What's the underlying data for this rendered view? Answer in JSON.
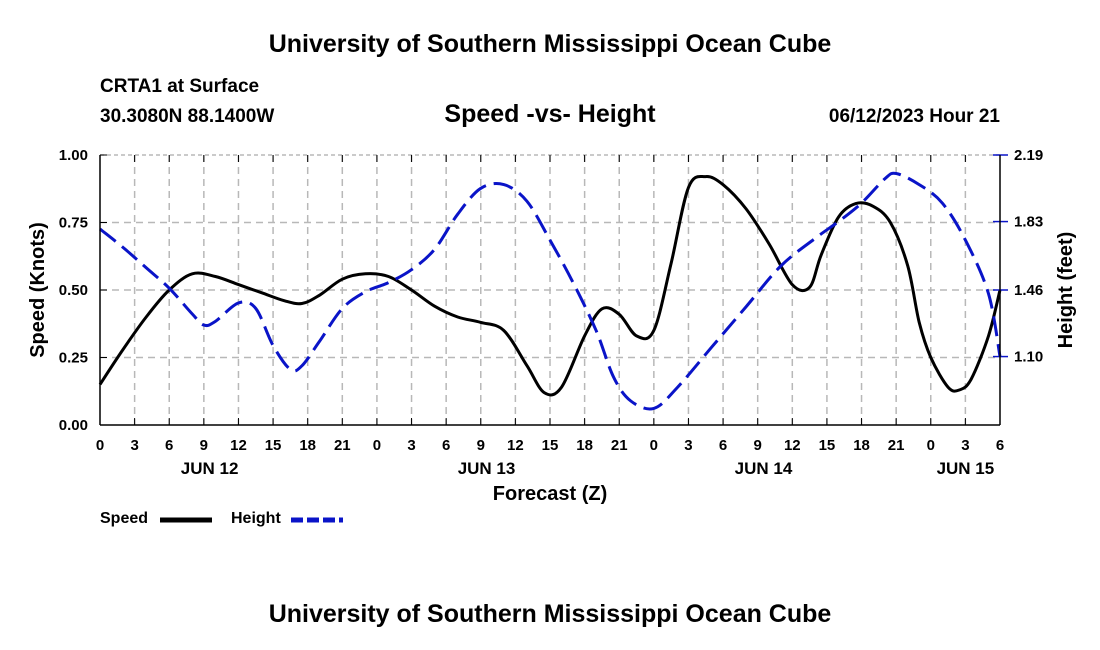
{
  "header": {
    "title": "University of Southern Mississippi Ocean Cube",
    "station": "CRTA1 at Surface",
    "coordinates": "30.3080N  88.1400W",
    "subtitle": "Speed -vs- Height",
    "datetime": "06/12/2023 Hour 21"
  },
  "footer": {
    "title": "University of Southern Mississippi Ocean Cube"
  },
  "colors": {
    "speed": "#000000",
    "height": "#0a14c8",
    "grid": "#b8b8b8"
  },
  "chart_data": {
    "type": "line",
    "title": "Speed -vs- Height",
    "xlabel": "Forecast (Z)",
    "ylabel": "Speed (Knots)",
    "y2label": "Height (feet)",
    "xlim": [
      0,
      78
    ],
    "ylim": [
      0,
      1.0
    ],
    "y2lim": [
      0.73,
      2.19
    ],
    "grid": true,
    "legend_position": "bottom-left",
    "x_ticks": [
      0,
      3,
      6,
      9,
      12,
      15,
      18,
      21,
      24,
      27,
      30,
      33,
      36,
      39,
      42,
      45,
      48,
      51,
      54,
      57,
      60,
      63,
      66,
      69,
      72,
      75,
      78
    ],
    "x_tick_labels": [
      "0",
      "3",
      "6",
      "9",
      "12",
      "15",
      "18",
      "21",
      "0",
      "3",
      "6",
      "9",
      "12",
      "15",
      "18",
      "21",
      "0",
      "3",
      "6",
      "9",
      "12",
      "15",
      "18",
      "21",
      "0",
      "3",
      "6"
    ],
    "day_labels": [
      {
        "x": 9.5,
        "label": "JUN 12"
      },
      {
        "x": 33.5,
        "label": "JUN 13"
      },
      {
        "x": 57.5,
        "label": "JUN 14"
      },
      {
        "x": 75,
        "label": "JUN 15"
      }
    ],
    "y_ticks": [
      0,
      0.25,
      0.5,
      0.75,
      1.0
    ],
    "y_tick_labels": [
      "0.00",
      "0.25",
      "0.50",
      "0.75",
      "1.00"
    ],
    "y2_ticks": [
      1.1,
      1.46,
      1.83,
      2.19
    ],
    "y2_tick_labels": [
      "1.10",
      "1.46",
      "1.83",
      "2.19"
    ],
    "series": [
      {
        "name": "Speed",
        "axis": "left",
        "style": "solid",
        "x": [
          0,
          2,
          4,
          6,
          8,
          10,
          12,
          14,
          16,
          17.5,
          19,
          21,
          23,
          25,
          27,
          29,
          31,
          33,
          35,
          37,
          38.5,
          40,
          42,
          43.5,
          45,
          46.5,
          48,
          49.5,
          51,
          52.5,
          54,
          56,
          58,
          60,
          61.5,
          62.5,
          64,
          65.5,
          67,
          68.5,
          70,
          71,
          72,
          73.5,
          74.5,
          75.5,
          77,
          78
        ],
        "values": [
          0.15,
          0.28,
          0.4,
          0.5,
          0.56,
          0.55,
          0.52,
          0.49,
          0.46,
          0.45,
          0.48,
          0.54,
          0.56,
          0.55,
          0.5,
          0.44,
          0.4,
          0.38,
          0.35,
          0.22,
          0.12,
          0.14,
          0.33,
          0.43,
          0.41,
          0.33,
          0.35,
          0.6,
          0.88,
          0.92,
          0.89,
          0.8,
          0.67,
          0.52,
          0.51,
          0.63,
          0.77,
          0.82,
          0.81,
          0.75,
          0.59,
          0.38,
          0.25,
          0.14,
          0.13,
          0.17,
          0.33,
          0.5
        ]
      },
      {
        "name": "Height",
        "axis": "right",
        "style": "dashed",
        "x": [
          0,
          2,
          4,
          6,
          8,
          9,
          10,
          12,
          13.5,
          15,
          16.5,
          17.5,
          19,
          21,
          23,
          25,
          27,
          29,
          31,
          33,
          35,
          37,
          39,
          41,
          43,
          44.5,
          46,
          48,
          50,
          53,
          56,
          59,
          62,
          64,
          66,
          68,
          69,
          71,
          73,
          75,
          77,
          78
        ],
        "values": [
          1.79,
          1.69,
          1.58,
          1.47,
          1.33,
          1.27,
          1.29,
          1.39,
          1.36,
          1.16,
          1.03,
          1.05,
          1.18,
          1.36,
          1.45,
          1.5,
          1.57,
          1.68,
          1.87,
          2.01,
          2.03,
          1.94,
          1.73,
          1.5,
          1.24,
          0.99,
          0.86,
          0.82,
          0.93,
          1.15,
          1.37,
          1.59,
          1.74,
          1.83,
          1.93,
          2.06,
          2.09,
          2.03,
          1.93,
          1.73,
          1.44,
          1.1
        ]
      }
    ]
  }
}
